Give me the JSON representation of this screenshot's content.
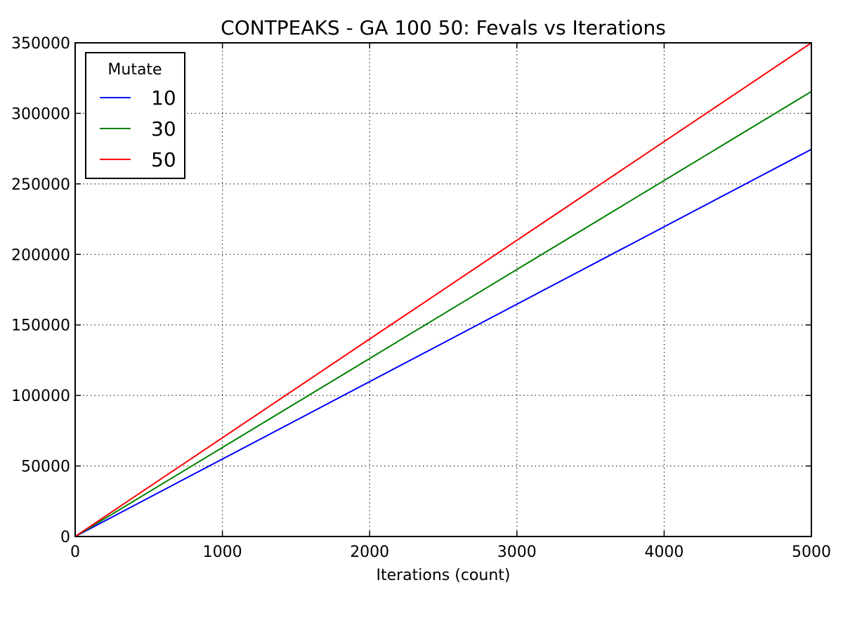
{
  "chart_data": {
    "type": "line",
    "title": "CONTPEAKS - GA 100 50: Fevals vs Iterations",
    "xlabel": "Iterations (count)",
    "ylabel": "",
    "xlim": [
      0,
      5000
    ],
    "ylim": [
      0,
      350000
    ],
    "xticks": [
      0,
      1000,
      2000,
      3000,
      4000,
      5000
    ],
    "yticks": [
      0,
      50000,
      100000,
      150000,
      200000,
      250000,
      300000,
      350000
    ],
    "xtick_labels": [
      "0",
      "1000",
      "2000",
      "3000",
      "4000",
      "5000"
    ],
    "ytick_labels": [
      "0",
      "50000",
      "100000",
      "150000",
      "200000",
      "250000",
      "300000",
      "350000"
    ],
    "grid": true,
    "legend": {
      "title": "Mutate",
      "placement": "top-left"
    },
    "x": [
      0,
      5000
    ],
    "series": [
      {
        "name": "10",
        "color": "#0000ff",
        "values": [
          0,
          274500
        ]
      },
      {
        "name": "30",
        "color": "#008000",
        "values": [
          0,
          315500
        ]
      },
      {
        "name": "50",
        "color": "#ff0000",
        "values": [
          0,
          350000
        ]
      }
    ]
  }
}
